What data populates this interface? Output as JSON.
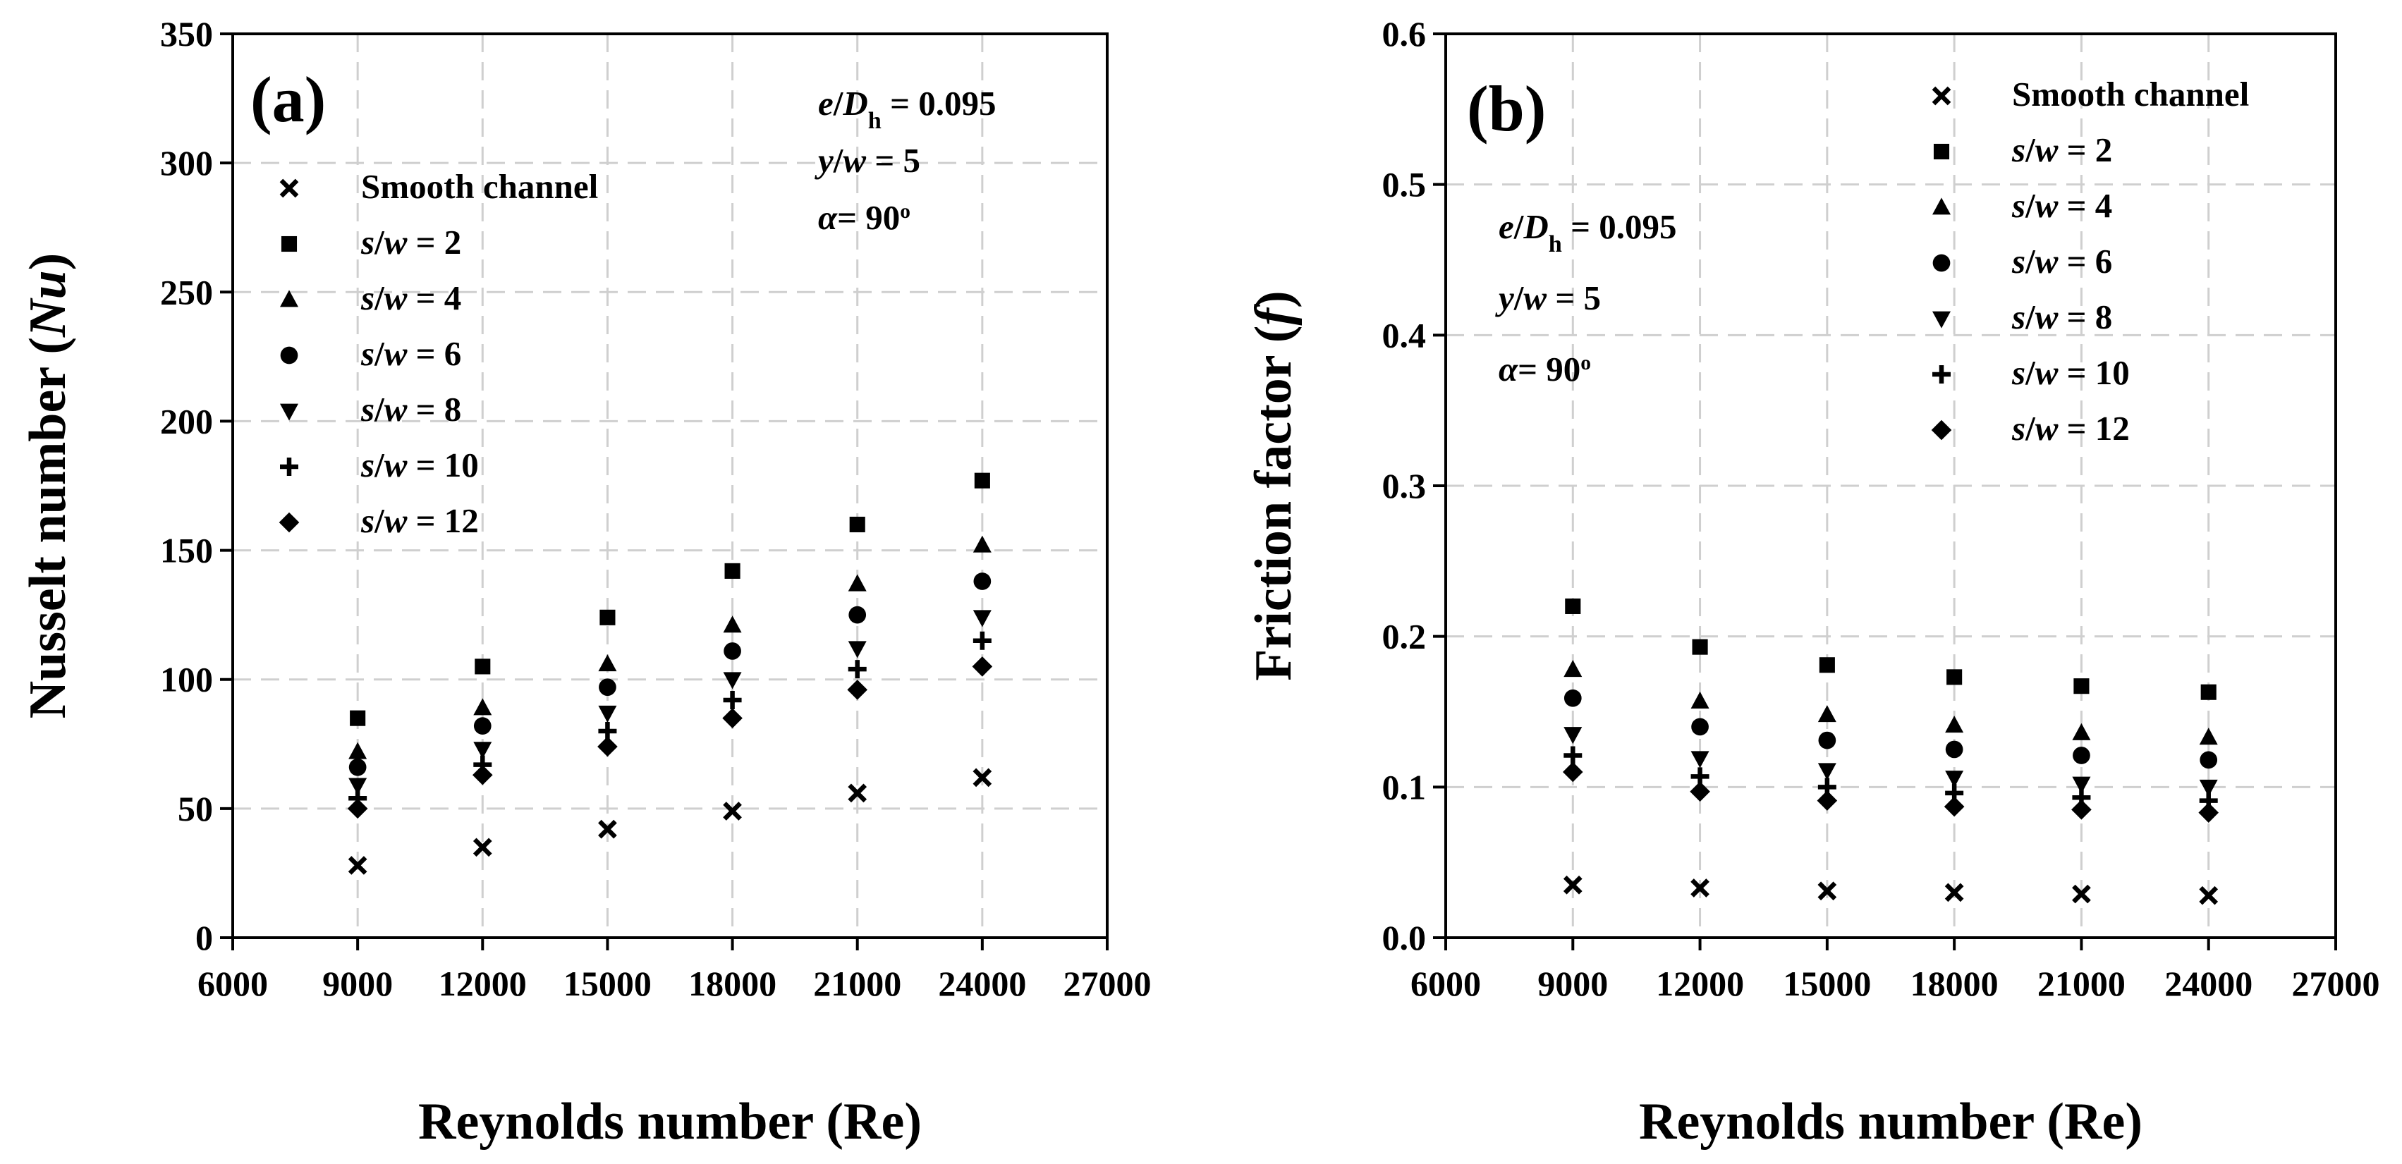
{
  "chart_data": [
    {
      "type": "scatter",
      "panel_label": "(a)",
      "xlabel": "Reynolds number (Re)",
      "ylabel": "Nusselt number (Nu)",
      "ylabel_parts": [
        "Nusselt number (",
        "Nu",
        ")"
      ],
      "xlim": [
        6000,
        27000
      ],
      "ylim": [
        0,
        350
      ],
      "xticks": [
        6000,
        9000,
        12000,
        15000,
        18000,
        21000,
        24000,
        27000
      ],
      "yticks": [
        0,
        50,
        100,
        150,
        200,
        250,
        300,
        350
      ],
      "ytick_labels": [
        "0",
        "50",
        "100",
        "150",
        "200",
        "250",
        "300",
        "350"
      ],
      "grid": true,
      "legend_position": "upper-left",
      "annotation_position": "top-right",
      "annotations": {
        "eDh": [
          "e",
          "/",
          "D",
          "h",
          " = 0.095"
        ],
        "yw": [
          "y",
          "/",
          "w",
          " = 5"
        ],
        "alpha": [
          "α",
          "= 90",
          "o"
        ]
      },
      "x": [
        9000,
        12000,
        15000,
        18000,
        21000,
        24000
      ],
      "series": [
        {
          "name": "Smooth channel",
          "marker": "x",
          "legend_parts": [
            "Smooth channel"
          ],
          "values": [
            28,
            35,
            42,
            49,
            56,
            62
          ]
        },
        {
          "name": "s/w = 2",
          "marker": "square",
          "legend_parts": [
            "s",
            "/",
            "w",
            " = 2"
          ],
          "values": [
            85,
            105,
            124,
            142,
            160,
            177
          ]
        },
        {
          "name": "s/w = 4",
          "marker": "triangle-up",
          "legend_parts": [
            "s",
            "/",
            "w",
            " = 4"
          ],
          "values": [
            72,
            89,
            106,
            121,
            137,
            152
          ]
        },
        {
          "name": "s/w = 6",
          "marker": "circle",
          "legend_parts": [
            "s",
            "/",
            "w",
            " = 6"
          ],
          "values": [
            66,
            82,
            97,
            111,
            125,
            138
          ]
        },
        {
          "name": "s/w = 8",
          "marker": "triangle-down",
          "legend_parts": [
            "s",
            "/",
            "w",
            " = 8"
          ],
          "values": [
            59,
            73,
            87,
            100,
            112,
            124
          ]
        },
        {
          "name": "s/w = 10",
          "marker": "plus",
          "legend_parts": [
            "s",
            "/",
            "w",
            " = 10"
          ],
          "values": [
            54,
            67,
            80,
            92,
            104,
            115
          ]
        },
        {
          "name": "s/w = 12",
          "marker": "diamond",
          "legend_parts": [
            "s",
            "/",
            "w",
            " = 12"
          ],
          "values": [
            50,
            63,
            74,
            85,
            96,
            105
          ]
        }
      ]
    },
    {
      "type": "scatter",
      "panel_label": "(b)",
      "xlabel": "Reynolds number (Re)",
      "ylabel": "Friction factor (f)",
      "ylabel_parts": [
        "Friction factor (",
        "f",
        ")"
      ],
      "xlim": [
        6000,
        27000
      ],
      "ylim": [
        0,
        0.6
      ],
      "xticks": [
        6000,
        9000,
        12000,
        15000,
        18000,
        21000,
        24000,
        27000
      ],
      "yticks": [
        0,
        0.1,
        0.2,
        0.3,
        0.4,
        0.5,
        0.6
      ],
      "ytick_labels": [
        "0.0",
        "0.1",
        "0.2",
        "0.3",
        "0.4",
        "0.5",
        "0.6"
      ],
      "grid": true,
      "legend_position": "upper-right",
      "annotation_position": "upper-left",
      "annotations": {
        "eDh": [
          "e",
          "/",
          "D",
          "h",
          " = 0.095"
        ],
        "yw": [
          "y",
          "/",
          "w",
          " = 5"
        ],
        "alpha": [
          "α",
          "= 90",
          "o"
        ]
      },
      "x": [
        9000,
        12000,
        15000,
        18000,
        21000,
        24000
      ],
      "series": [
        {
          "name": "Smooth channel",
          "marker": "x",
          "legend_parts": [
            "Smooth channel"
          ],
          "values": [
            0.035,
            0.033,
            0.031,
            0.03,
            0.029,
            0.028
          ]
        },
        {
          "name": "s/w = 2",
          "marker": "square",
          "legend_parts": [
            "s",
            "/",
            "w",
            " = 2"
          ],
          "values": [
            0.22,
            0.193,
            0.181,
            0.173,
            0.167,
            0.163
          ]
        },
        {
          "name": "s/w = 4",
          "marker": "triangle-up",
          "legend_parts": [
            "s",
            "/",
            "w",
            " = 4"
          ],
          "values": [
            0.178,
            0.157,
            0.148,
            0.141,
            0.136,
            0.133
          ]
        },
        {
          "name": "s/w = 6",
          "marker": "circle",
          "legend_parts": [
            "s",
            "/",
            "w",
            " = 6"
          ],
          "values": [
            0.159,
            0.14,
            0.131,
            0.125,
            0.121,
            0.118
          ]
        },
        {
          "name": "s/w = 8",
          "marker": "triangle-down",
          "legend_parts": [
            "s",
            "/",
            "w",
            " = 8"
          ],
          "values": [
            0.135,
            0.119,
            0.111,
            0.106,
            0.102,
            0.1
          ]
        },
        {
          "name": "s/w = 10",
          "marker": "plus",
          "legend_parts": [
            "s",
            "/",
            "w",
            " = 10"
          ],
          "values": [
            0.121,
            0.107,
            0.1,
            0.096,
            0.093,
            0.091
          ]
        },
        {
          "name": "s/w = 12",
          "marker": "diamond",
          "legend_parts": [
            "s",
            "/",
            "w",
            " = 12"
          ],
          "values": [
            0.11,
            0.097,
            0.091,
            0.087,
            0.085,
            0.083
          ]
        }
      ]
    }
  ]
}
